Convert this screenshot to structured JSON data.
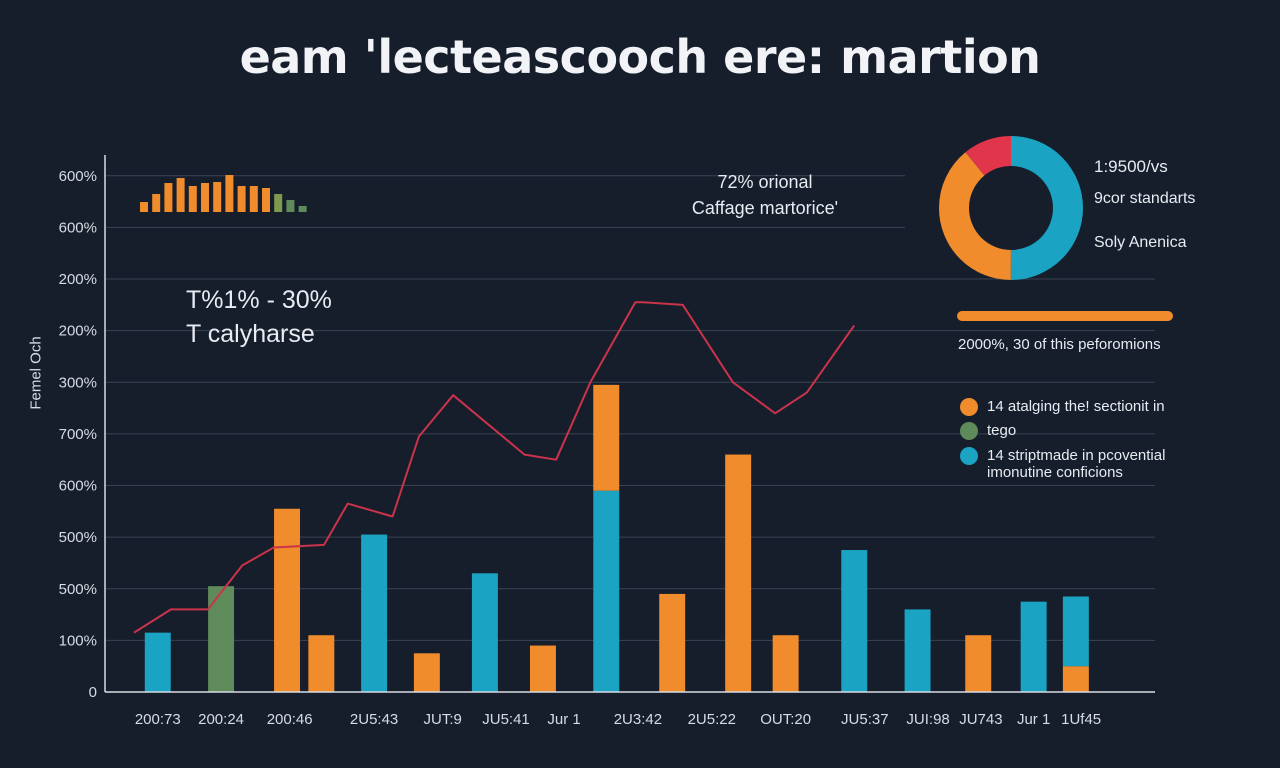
{
  "title": "eam 'lecteascooch ere: martion",
  "chart_data": [
    {
      "type": "bar",
      "title": "",
      "xlabel": "",
      "ylabel": "Femel Och",
      "y_tick_labels": [
        "0",
        "100%",
        "500%",
        "500%",
        "600%",
        "700%",
        "300%",
        "200%",
        "200%",
        "600%",
        "600%"
      ],
      "y_tick_values": [
        0,
        1,
        2,
        3,
        4,
        5,
        6,
        7,
        8,
        9,
        10
      ],
      "ylim": [
        0,
        10.5
      ],
      "categories": [
        "200:73",
        "200:24",
        "200:46",
        "2U5:43",
        "JUT:9",
        "JU5:41",
        "Jur 1",
        "2U3:42",
        "2U5:22",
        "OUT:20",
        "JU5:37",
        "JUI:98",
        "JU743",
        "Jur 1",
        "1Uf45"
      ],
      "x_label_positions": [
        0.4,
        1.6,
        2.9,
        4.5,
        5.8,
        7.0,
        8.1,
        9.5,
        10.9,
        12.3,
        13.8,
        15.0,
        16.0,
        17.0,
        17.9
      ],
      "bars": [
        {
          "x": 0.4,
          "segments": [
            {
              "value": 1.15,
              "color": "#1aa3c2"
            }
          ]
        },
        {
          "x": 1.6,
          "segments": [
            {
              "value": 2.05,
              "color": "#5f8a5a"
            }
          ]
        },
        {
          "x": 2.85,
          "segments": [
            {
              "value": 3.55,
              "color": "#f08c2c"
            }
          ]
        },
        {
          "x": 3.5,
          "segments": [
            {
              "value": 1.1,
              "color": "#f08c2c"
            }
          ]
        },
        {
          "x": 4.5,
          "segments": [
            {
              "value": 3.05,
              "color": "#1aa3c2"
            }
          ]
        },
        {
          "x": 5.5,
          "segments": [
            {
              "value": 0.75,
              "color": "#f08c2c"
            }
          ]
        },
        {
          "x": 6.6,
          "segments": [
            {
              "value": 2.3,
              "color": "#1aa3c2"
            }
          ]
        },
        {
          "x": 7.7,
          "segments": [
            {
              "value": 0.9,
              "color": "#f08c2c"
            }
          ]
        },
        {
          "x": 8.9,
          "segments": [
            {
              "value": 3.9,
              "color": "#1aa3c2"
            },
            {
              "value": 2.05,
              "color": "#f08c2c"
            }
          ]
        },
        {
          "x": 10.15,
          "segments": [
            {
              "value": 1.9,
              "color": "#f08c2c"
            }
          ]
        },
        {
          "x": 11.4,
          "segments": [
            {
              "value": 4.6,
              "color": "#f08c2c"
            }
          ]
        },
        {
          "x": 12.3,
          "segments": [
            {
              "value": 1.1,
              "color": "#f08c2c"
            }
          ]
        },
        {
          "x": 13.6,
          "segments": [
            {
              "value": 2.75,
              "color": "#1aa3c2"
            }
          ]
        },
        {
          "x": 14.8,
          "segments": [
            {
              "value": 1.6,
              "color": "#1aa3c2"
            }
          ]
        },
        {
          "x": 15.95,
          "segments": [
            {
              "value": 1.1,
              "color": "#f08c2c"
            }
          ]
        },
        {
          "x": 17.0,
          "segments": [
            {
              "value": 1.75,
              "color": "#1aa3c2"
            }
          ]
        },
        {
          "x": 17.8,
          "segments": [
            {
              "value": 0.5,
              "color": "#f08c2c"
            },
            {
              "value": 1.35,
              "color": "#1aa3c2"
            }
          ]
        }
      ],
      "line": {
        "color": "#c9344a",
        "x": [
          -0.05,
          0.65,
          1.35,
          2.0,
          2.6,
          3.55,
          4.0,
          4.85,
          5.35,
          6.0,
          7.35,
          7.95,
          8.6,
          9.45,
          9.6,
          10.35,
          11.3,
          12.1,
          12.7,
          13.6
        ],
        "y": [
          1.15,
          1.6,
          1.6,
          2.45,
          2.8,
          2.85,
          3.65,
          3.4,
          4.95,
          5.75,
          4.6,
          4.5,
          6.0,
          7.55,
          7.55,
          7.5,
          6.0,
          5.4,
          5.8,
          7.1
        ]
      }
    },
    {
      "type": "bar",
      "title": "",
      "values": [
        1,
        1.8,
        2.9,
        3.4,
        2.6,
        2.9,
        3.0,
        3.7,
        2.6,
        2.6,
        2.4,
        1.8,
        1.2,
        0.6
      ],
      "colors": [
        "#f08c2c",
        "#f08c2c",
        "#f08c2c",
        "#f08c2c",
        "#f08c2c",
        "#f08c2c",
        "#f08c2c",
        "#f08c2c",
        "#f08c2c",
        "#f08c2c",
        "#f08c2c",
        "#7f9a4e",
        "#5f8a5a",
        "#5f8a5a"
      ]
    },
    {
      "type": "pie",
      "title": "",
      "hole": true,
      "slices": [
        {
          "label": "",
          "value": 0.5,
          "color": "#1aa3c2"
        },
        {
          "label": "",
          "value": 0.39,
          "color": "#f08c2c"
        },
        {
          "label": "",
          "value": 0.11,
          "color": "#e0354b"
        }
      ]
    }
  ],
  "annotations": {
    "stat_line1": "T%1% - 30%",
    "stat_line2": "T calyharse",
    "note_line1": "72% orional",
    "note_line2": "Caffage martorice'"
  },
  "donut_text": {
    "line1": "1:9500/vs",
    "line2": "9cor standarts",
    "line3": "Soly Anenica"
  },
  "progress": {
    "fraction": 1.0,
    "caption": "2000%, 30 of this peforomions",
    "fill_color": "#f08c2c"
  },
  "legend": [
    {
      "label": "14 atalging the! sectionit in",
      "color": "#f08c2c"
    },
    {
      "label": "tego",
      "color": "#5f8a5a"
    },
    {
      "label": "14 striptmade in pcovential imonutine conficions",
      "color": "#1aa3c2"
    }
  ],
  "colors": {
    "background": "#161d2b",
    "orange": "#f08c2c",
    "teal": "#1aa3c2",
    "green": "#5f8a5a",
    "red_line": "#c9344a",
    "grid": "#3a4356"
  }
}
